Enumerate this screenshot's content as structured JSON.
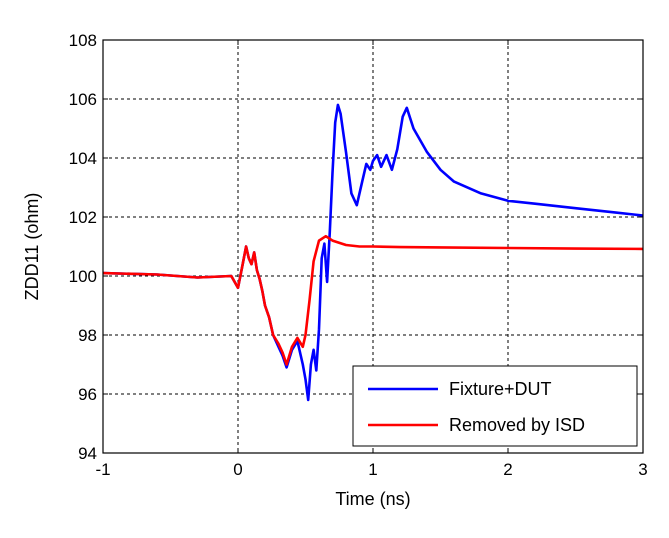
{
  "chart_data": {
    "type": "line",
    "title": "",
    "xlabel": "Time (ns)",
    "ylabel": "ZDD11 (ohm)",
    "xlim": [
      -1,
      3
    ],
    "ylim": [
      94,
      108
    ],
    "xticks": [
      -1,
      0,
      1,
      2,
      3
    ],
    "yticks": [
      94,
      96,
      98,
      100,
      102,
      104,
      106,
      108
    ],
    "grid": true,
    "legend_position": "bottom-right",
    "series": [
      {
        "name": "Fixture+DUT",
        "color": "#0000ff",
        "x": [
          -1,
          -0.6,
          -0.3,
          -0.05,
          0.0,
          0.03,
          0.06,
          0.08,
          0.1,
          0.12,
          0.14,
          0.16,
          0.18,
          0.2,
          0.23,
          0.26,
          0.3,
          0.33,
          0.36,
          0.4,
          0.44,
          0.48,
          0.5,
          0.52,
          0.54,
          0.56,
          0.58,
          0.6,
          0.62,
          0.64,
          0.66,
          0.68,
          0.7,
          0.72,
          0.74,
          0.76,
          0.8,
          0.84,
          0.88,
          0.92,
          0.95,
          0.98,
          1.0,
          1.03,
          1.06,
          1.1,
          1.14,
          1.18,
          1.22,
          1.25,
          1.3,
          1.4,
          1.5,
          1.6,
          1.8,
          2.0,
          2.2,
          2.5,
          2.8,
          3.0
        ],
        "y": [
          100.1,
          100.05,
          99.95,
          100.0,
          99.6,
          100.3,
          101.0,
          100.6,
          100.4,
          100.8,
          100.2,
          99.9,
          99.5,
          99.0,
          98.6,
          98.0,
          97.6,
          97.3,
          96.9,
          97.5,
          97.8,
          97.0,
          96.5,
          95.8,
          97.0,
          97.5,
          96.8,
          98.2,
          100.6,
          101.1,
          99.8,
          101.5,
          103.5,
          105.2,
          105.8,
          105.5,
          104.2,
          102.8,
          102.4,
          103.2,
          103.8,
          103.6,
          103.9,
          104.1,
          103.7,
          104.1,
          103.6,
          104.3,
          105.4,
          105.7,
          105.0,
          104.2,
          103.6,
          103.2,
          102.8,
          102.55,
          102.45,
          102.3,
          102.15,
          102.05
        ]
      },
      {
        "name": "Removed by ISD",
        "color": "#ff0000",
        "x": [
          -1,
          -0.6,
          -0.3,
          -0.05,
          0.0,
          0.03,
          0.06,
          0.08,
          0.1,
          0.12,
          0.14,
          0.16,
          0.18,
          0.2,
          0.23,
          0.26,
          0.3,
          0.33,
          0.36,
          0.4,
          0.44,
          0.48,
          0.5,
          0.53,
          0.56,
          0.6,
          0.65,
          0.7,
          0.8,
          0.9,
          1.0,
          1.2,
          1.5,
          2.0,
          2.5,
          3.0
        ],
        "y": [
          100.1,
          100.05,
          99.95,
          100.0,
          99.6,
          100.3,
          101.0,
          100.6,
          100.4,
          100.8,
          100.2,
          99.9,
          99.5,
          99.0,
          98.6,
          98.0,
          97.7,
          97.4,
          97.0,
          97.6,
          97.9,
          97.6,
          98.0,
          99.2,
          100.5,
          101.2,
          101.35,
          101.2,
          101.05,
          101.0,
          101.0,
          100.98,
          100.97,
          100.95,
          100.93,
          100.92
        ]
      }
    ]
  }
}
